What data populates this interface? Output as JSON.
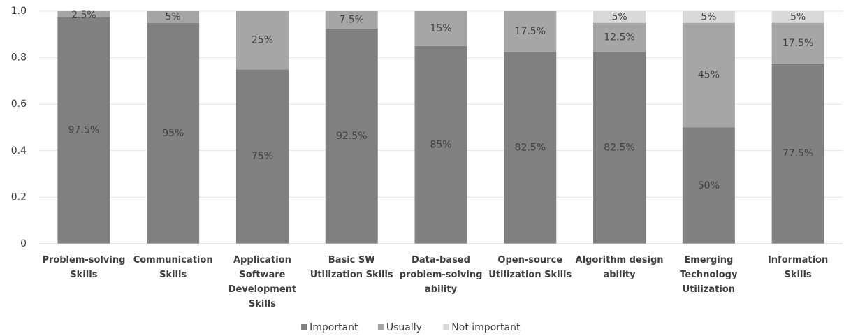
{
  "chart_data": {
    "type": "stacked_bar",
    "categories": [
      "Problem-solving Skills",
      "Communication Skills",
      "Application Software Development Skills",
      "Basic SW Utilization Skills",
      "Data-based problem-solving ability",
      "Open-source Utilization Skills",
      "Algorithm design ability",
      "Emerging Technology Utilization",
      "Information Skills"
    ],
    "series": [
      {
        "name": "Important",
        "color": "#808080",
        "values": [
          0.975,
          0.95,
          0.75,
          0.925,
          0.85,
          0.825,
          0.825,
          0.5,
          0.775
        ],
        "value_labels": [
          "97.5%",
          "95%",
          "75%",
          "92.5%",
          "85%",
          "82.5%",
          "82.5%",
          "50%",
          "77.5%"
        ]
      },
      {
        "name": "Usually",
        "color": "#a6a6a6",
        "values": [
          0.025,
          0.05,
          0.25,
          0.075,
          0.15,
          0.175,
          0.125,
          0.45,
          0.175
        ],
        "value_labels": [
          "2.5%",
          "5%",
          "25%",
          "7.5%",
          "15%",
          "17.5%",
          "12.5%",
          "45%",
          "17.5%"
        ]
      },
      {
        "name": "Not important",
        "color": "#d9d9d9",
        "values": [
          0,
          0,
          0,
          0,
          0,
          0,
          0.05,
          0.05,
          0.05
        ],
        "value_labels": [
          null,
          null,
          null,
          null,
          null,
          null,
          "5%",
          "5%",
          "5%"
        ]
      }
    ],
    "ylim": [
      0,
      1
    ],
    "yticks": [
      0,
      0.2,
      0.4,
      0.6,
      0.8,
      {
        "value": 1,
        "label": "1.0"
      }
    ],
    "grid": true,
    "legend": "bottom"
  }
}
